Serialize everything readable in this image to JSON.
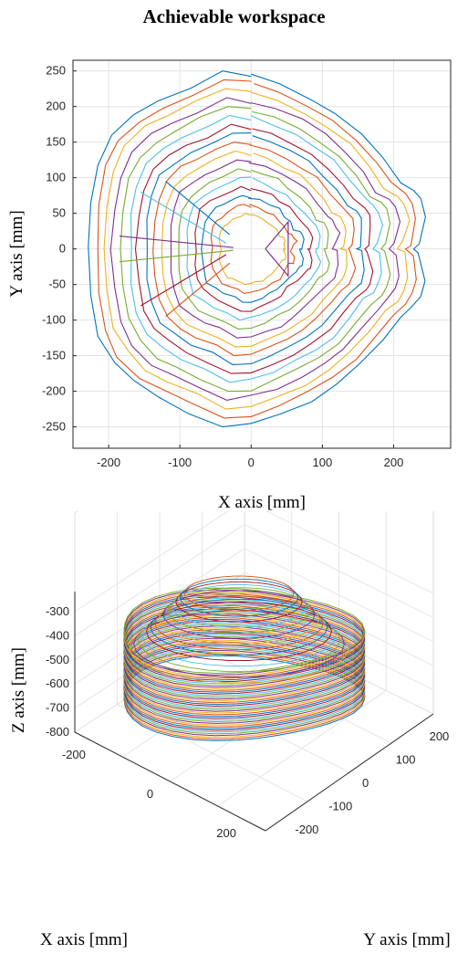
{
  "figure_title": "Achievable workspace",
  "colors": [
    "#0072BD",
    "#D95319",
    "#EDB120",
    "#7E2F8E",
    "#77AC30",
    "#4DBEEE",
    "#A2142F"
  ],
  "chart_data": [
    {
      "type": "line",
      "view": "2d",
      "title": "",
      "xlabel": "X axis [mm]",
      "ylabel": "Y axis [mm]",
      "xlim": [
        -250,
        280
      ],
      "ylim": [
        -280,
        265
      ],
      "xticks": [
        -200,
        -100,
        0,
        100,
        200
      ],
      "yticks": [
        -250,
        -200,
        -150,
        -100,
        -50,
        0,
        50,
        100,
        150,
        200,
        250
      ],
      "grid": true,
      "legend": "none",
      "outer_contour": {
        "x": [
          0,
          40,
          85,
          120,
          155,
          185,
          210,
          228,
          238,
          244,
          236,
          228,
          236,
          244,
          238,
          228,
          210,
          185,
          155,
          120,
          85,
          40,
          0,
          -40,
          -85,
          -130,
          -165,
          -195,
          -215,
          -225,
          -228,
          -225,
          -215,
          -195,
          -165,
          -130,
          -85,
          -40,
          0
        ],
        "y": [
          245,
          232,
          212,
          190,
          162,
          128,
          96,
          82,
          68,
          45,
          8,
          0,
          -8,
          -45,
          -68,
          -82,
          -96,
          -128,
          -162,
          -190,
          -212,
          -232,
          -245,
          -250,
          -228,
          -208,
          -188,
          -160,
          -120,
          -65,
          0,
          65,
          120,
          160,
          188,
          208,
          228,
          250,
          245
        ]
      },
      "contour_scales": [
        1.0,
        0.95,
        0.9,
        0.85,
        0.8,
        0.75,
        0.7,
        0.65,
        0.6,
        0.55,
        0.5,
        0.45,
        0.4,
        0.35,
        0.3,
        0.25,
        0.2
      ],
      "inner_triangle": {
        "x": [
          20,
          52,
          52,
          20
        ],
        "y": [
          0,
          38,
          -38,
          0
        ]
      },
      "spokes": [
        {
          "x": [
            -185,
            -25
          ],
          "y": [
            18,
            2
          ]
        },
        {
          "x": [
            -185,
            -25
          ],
          "y": [
            -18,
            -2
          ]
        },
        {
          "x": [
            -155,
            -35
          ],
          "y": [
            80,
            8
          ]
        },
        {
          "x": [
            -155,
            -35
          ],
          "y": [
            -80,
            -8
          ]
        },
        {
          "x": [
            -120,
            -30
          ],
          "y": [
            95,
            20
          ]
        },
        {
          "x": [
            -120,
            -30
          ],
          "y": [
            -95,
            -20
          ]
        }
      ]
    },
    {
      "type": "line",
      "view": "3d",
      "title": "",
      "xlabel": "X axis [mm]",
      "ylabel": "Y axis [mm]",
      "zlabel": "Z axis [mm]",
      "xticks": [
        -200,
        0,
        200
      ],
      "yticks": [
        -200,
        -100,
        0,
        100,
        200
      ],
      "zticks": [
        -300,
        -400,
        -500,
        -600,
        -700,
        -800
      ],
      "zlim": [
        -800,
        -300
      ],
      "grid": true,
      "legend": "none",
      "layers": {
        "z_bottom": -780,
        "z_top": -500,
        "count": 40
      },
      "top_cap": {
        "z_min": -470,
        "z_max": -330
      }
    }
  ]
}
